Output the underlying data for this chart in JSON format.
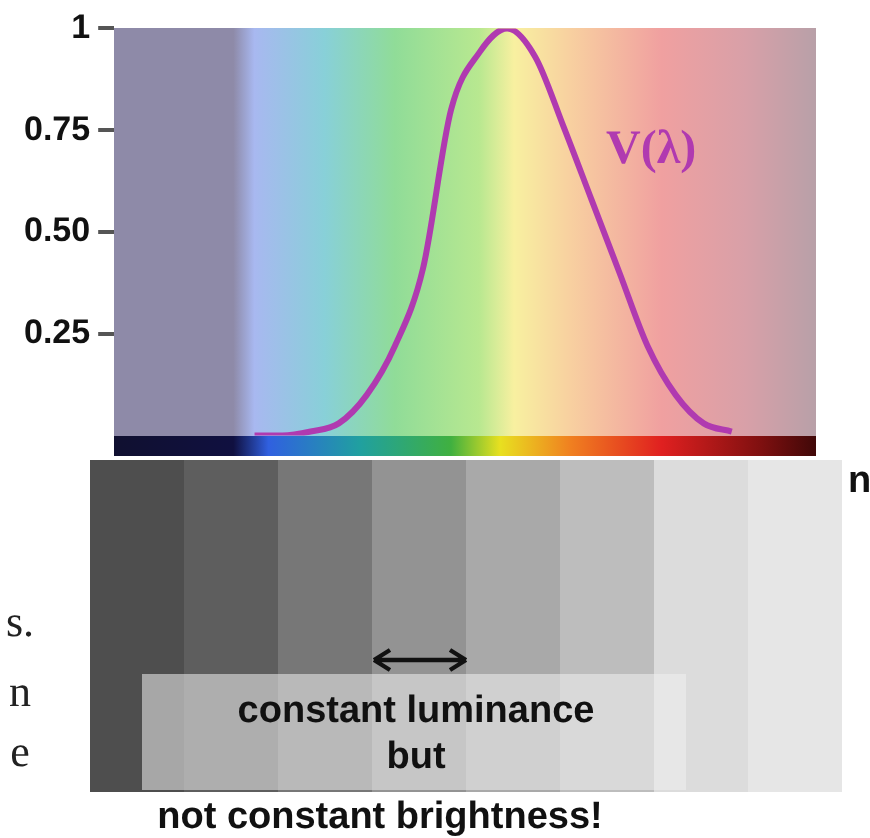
{
  "chart_data": {
    "type": "line",
    "categories": [
      null,
      null,
      null,
      null,
      null,
      null,
      null,
      null,
      null,
      null,
      null,
      null,
      null,
      null,
      null,
      null,
      null,
      null,
      null,
      null,
      null,
      null,
      null,
      null,
      null,
      null
    ],
    "series": [
      {
        "name": "V(λ)",
        "color": "#b03ab0",
        "values": [
          null,
          null,
          null,
          null,
          null,
          0,
          0,
          0.01,
          0.03,
          0.1,
          0.22,
          0.41,
          0.8,
          0.94,
          1.0,
          0.93,
          0.76,
          0.58,
          0.4,
          0.22,
          0.1,
          0.03,
          0.01,
          null,
          null,
          null
        ]
      }
    ],
    "ylim": [
      0,
      1
    ],
    "yticks": [
      {
        "value": 0.25,
        "label": "0.25"
      },
      {
        "value": 0.5,
        "label": "0.50"
      },
      {
        "value": 0.75,
        "label": "0.75"
      },
      1
    ],
    "tick_labels": "y",
    "grid": false,
    "legend": false,
    "marker": "none",
    "line_style": "solid",
    "annotations": [
      "constant luminance",
      "but",
      "not constant brightness!",
      "s.",
      "n",
      "e",
      "n"
    ]
  }
}
